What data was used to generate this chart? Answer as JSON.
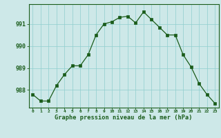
{
  "x": [
    0,
    1,
    2,
    3,
    4,
    5,
    6,
    7,
    8,
    9,
    10,
    11,
    12,
    13,
    14,
    15,
    16,
    17,
    18,
    19,
    20,
    21,
    22,
    23
  ],
  "y": [
    987.8,
    987.5,
    987.5,
    988.2,
    988.7,
    989.1,
    989.1,
    989.6,
    990.5,
    991.0,
    991.1,
    991.3,
    991.35,
    991.05,
    991.55,
    991.2,
    990.85,
    990.5,
    990.5,
    989.6,
    989.05,
    988.3,
    987.8,
    987.4
  ],
  "line_color": "#1a5c1a",
  "marker_color": "#1a5c1a",
  "bg_color": "#cde8e8",
  "grid_color": "#8ecece",
  "title": "Graphe pression niveau de la mer (hPa)",
  "title_color": "#1a5c1a",
  "tick_color": "#1a5c1a",
  "ylim_min": 987.2,
  "ylim_max": 991.9,
  "yticks": [
    988,
    989,
    990,
    991
  ],
  "border_color": "#1a5c1a"
}
